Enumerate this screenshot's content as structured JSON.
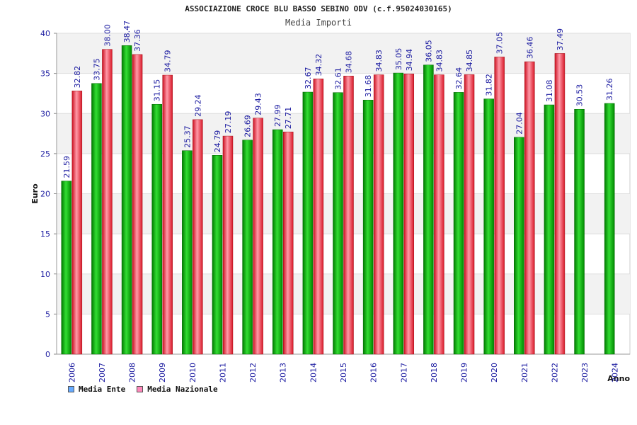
{
  "chart_data": {
    "type": "bar",
    "title": "ASSOCIAZIONE CROCE BLU BASSO SEBINO ODV (c.f.95024030165)",
    "subtitle": "Media Importi",
    "xlabel": "Anno",
    "ylabel": "Euro",
    "ylim": [
      0,
      40
    ],
    "yticks": [
      0,
      5,
      10,
      15,
      20,
      25,
      30,
      35,
      40
    ],
    "grid": true,
    "legend_position": "bottom-left",
    "categories": [
      "2006",
      "2007",
      "2008",
      "2009",
      "2010",
      "2011",
      "2012",
      "2013",
      "2014",
      "2015",
      "2016",
      "2017",
      "2018",
      "2019",
      "2020",
      "2021",
      "2022",
      "2023",
      "2024"
    ],
    "series": [
      {
        "name": "Media Ente",
        "color": "#00aa00",
        "legend_color": "#66aaff",
        "values": [
          21.59,
          33.75,
          38.47,
          31.15,
          25.37,
          24.79,
          26.69,
          27.99,
          32.67,
          32.61,
          31.68,
          35.05,
          36.05,
          32.64,
          31.82,
          27.04,
          31.08,
          30.53,
          31.26
        ],
        "labels": [
          "21.59",
          "33.75",
          "38.47",
          "31.15",
          "25.37",
          "24.79",
          "26.69",
          "27.99",
          "32.67",
          "32.61",
          "31.68",
          "35.05",
          "36.05",
          "32.64",
          "31.82",
          "27.04",
          "31.08",
          "30.53",
          "31.26"
        ]
      },
      {
        "name": "Media Nazionale",
        "color": "#e8303a",
        "legend_color": "#ff88bb",
        "values": [
          32.82,
          38.0,
          37.36,
          34.79,
          29.24,
          27.19,
          29.43,
          27.71,
          34.32,
          34.68,
          34.83,
          34.94,
          34.83,
          34.85,
          37.05,
          36.46,
          37.49,
          null,
          null
        ],
        "labels": [
          "32.82",
          "38.00",
          "37.36",
          "34.79",
          "29.24",
          "27.19",
          "29.43",
          "27.71",
          "34.32",
          "34.68",
          "34.83",
          "34.94",
          "34.83",
          "34.85",
          "37.05",
          "36.46",
          "37.49",
          null,
          null
        ]
      }
    ]
  }
}
